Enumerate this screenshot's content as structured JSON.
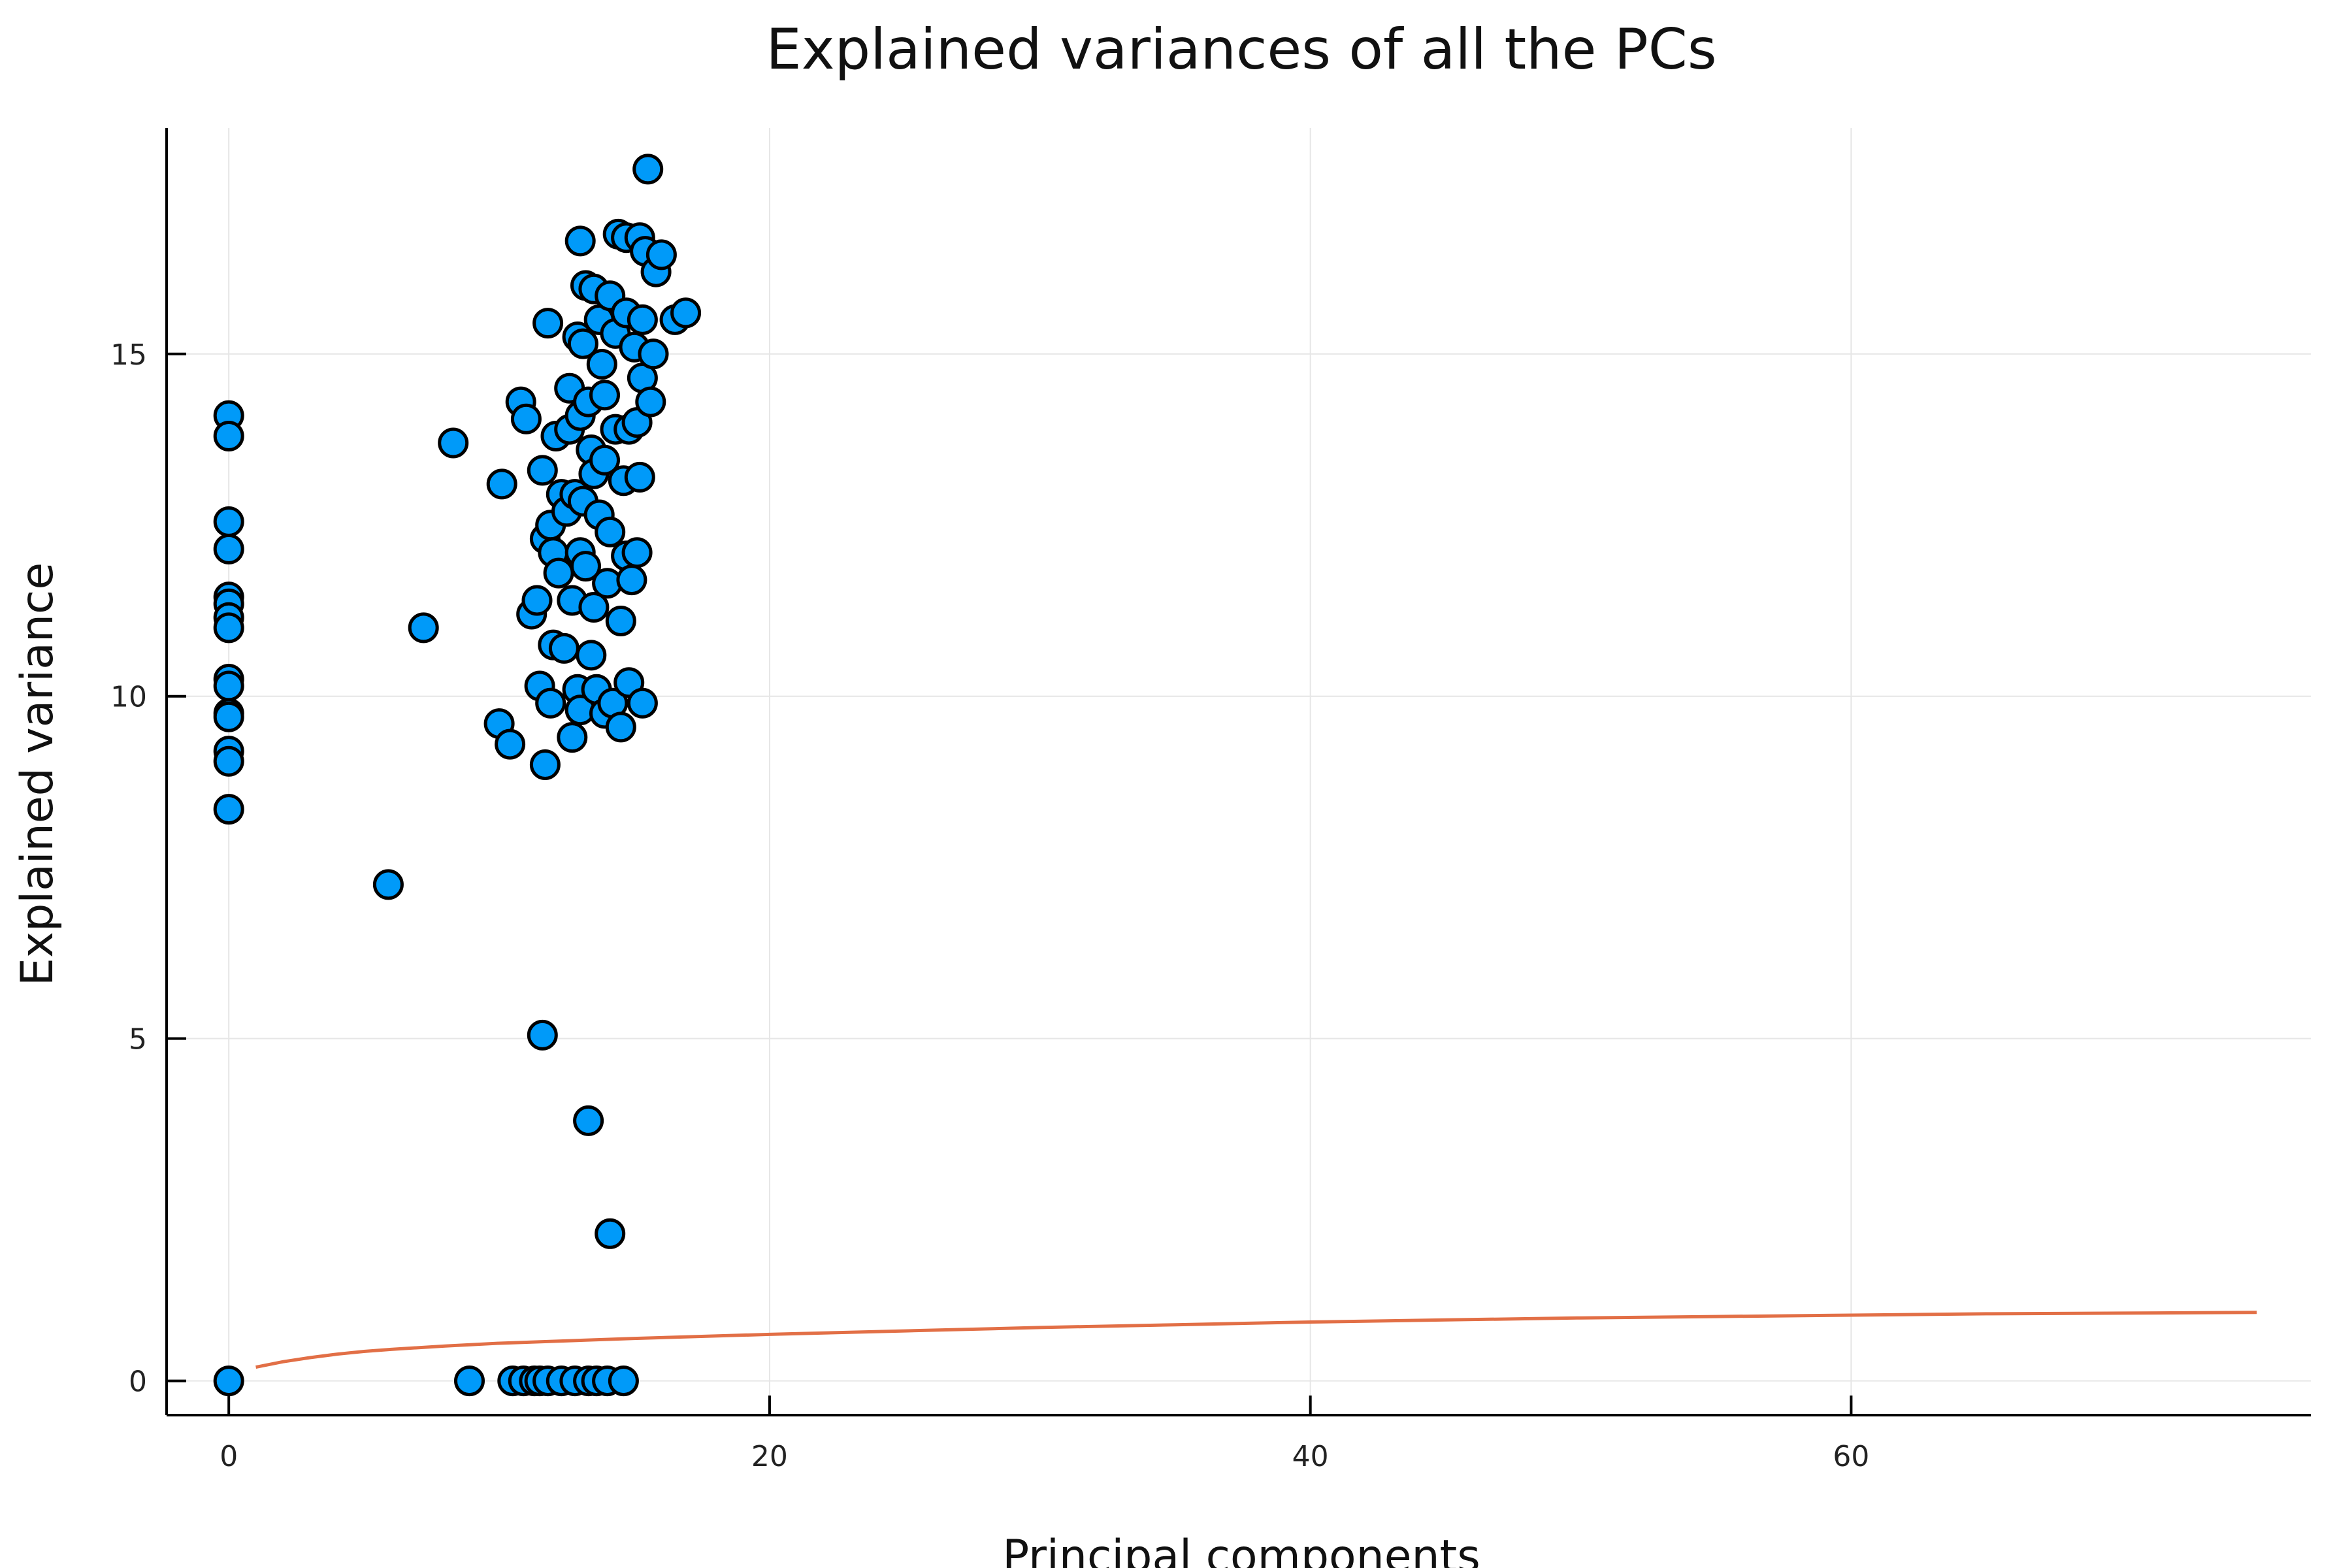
{
  "chart_data": {
    "type": "scatter",
    "title": "Explained variances of all the PCs",
    "xlabel": "Principal components",
    "ylabel": "Explained variance",
    "xlim": [
      -2.3,
      77
    ],
    "ylim": [
      -0.5,
      18.3
    ],
    "xticks": [
      0,
      20,
      40,
      60
    ],
    "yticks": [
      0,
      5,
      10,
      15
    ],
    "grid": true,
    "legend": "none",
    "series": [
      {
        "type": "scatter",
        "color": "#009AF9",
        "points": [
          [
            0,
            14.1
          ],
          [
            0,
            13.8
          ],
          [
            0,
            12.55
          ],
          [
            0,
            12.15
          ],
          [
            0,
            11.45
          ],
          [
            0,
            11.35
          ],
          [
            0,
            11.15
          ],
          [
            0,
            11.0
          ],
          [
            0,
            10.25
          ],
          [
            0,
            10.15
          ],
          [
            0,
            9.75
          ],
          [
            0,
            9.7
          ],
          [
            0,
            9.2
          ],
          [
            0,
            9.05
          ],
          [
            0,
            8.35
          ],
          [
            0,
            0
          ],
          [
            5.9,
            7.25
          ],
          [
            7.2,
            11.0
          ],
          [
            8.3,
            13.7
          ],
          [
            8.9,
            0
          ],
          [
            10.0,
            9.6
          ],
          [
            10.1,
            13.1
          ],
          [
            10.4,
            9.3
          ],
          [
            10.5,
            0
          ],
          [
            10.8,
            14.3
          ],
          [
            10.9,
            0
          ],
          [
            11.0,
            14.05
          ],
          [
            11.2,
            11.2
          ],
          [
            11.3,
            0
          ],
          [
            11.4,
            11.4
          ],
          [
            11.5,
            0
          ],
          [
            11.5,
            10.15
          ],
          [
            11.6,
            13.3
          ],
          [
            11.6,
            5.05
          ],
          [
            11.7,
            12.3
          ],
          [
            11.7,
            9.0
          ],
          [
            11.8,
            15.45
          ],
          [
            11.8,
            0
          ],
          [
            11.9,
            12.5
          ],
          [
            11.9,
            9.9
          ],
          [
            12.0,
            10.75
          ],
          [
            12.0,
            12.1
          ],
          [
            12.1,
            13.8
          ],
          [
            12.2,
            11.8
          ],
          [
            12.3,
            12.95
          ],
          [
            12.3,
            0
          ],
          [
            12.4,
            10.7
          ],
          [
            12.5,
            12.7
          ],
          [
            12.6,
            13.9
          ],
          [
            12.6,
            14.5
          ],
          [
            12.7,
            11.4
          ],
          [
            12.7,
            9.4
          ],
          [
            12.8,
            0
          ],
          [
            12.8,
            12.95
          ],
          [
            12.9,
            15.25
          ],
          [
            12.9,
            10.1
          ],
          [
            13.0,
            16.65
          ],
          [
            13.0,
            14.1
          ],
          [
            13.0,
            12.1
          ],
          [
            13.0,
            9.8
          ],
          [
            13.1,
            12.85
          ],
          [
            13.1,
            15.15
          ],
          [
            13.2,
            16.0
          ],
          [
            13.2,
            11.9
          ],
          [
            13.3,
            3.8
          ],
          [
            13.3,
            0
          ],
          [
            13.3,
            14.3
          ],
          [
            13.4,
            13.6
          ],
          [
            13.4,
            10.6
          ],
          [
            13.5,
            15.95
          ],
          [
            13.5,
            13.25
          ],
          [
            13.5,
            11.3
          ],
          [
            13.6,
            0
          ],
          [
            13.6,
            10.1
          ],
          [
            13.7,
            12.65
          ],
          [
            13.7,
            15.5
          ],
          [
            13.8,
            14.85
          ],
          [
            13.9,
            14.4
          ],
          [
            13.9,
            13.45
          ],
          [
            13.9,
            9.75
          ],
          [
            14.0,
            11.65
          ],
          [
            14.0,
            0
          ],
          [
            14.1,
            15.85
          ],
          [
            14.1,
            12.4
          ],
          [
            14.1,
            2.15
          ],
          [
            14.2,
            9.9
          ],
          [
            14.3,
            13.9
          ],
          [
            14.3,
            15.3
          ],
          [
            14.4,
            16.75
          ],
          [
            14.5,
            11.1
          ],
          [
            14.5,
            9.55
          ],
          [
            14.6,
            13.15
          ],
          [
            14.6,
            0
          ],
          [
            14.7,
            15.6
          ],
          [
            14.7,
            12.05
          ],
          [
            14.7,
            16.7
          ],
          [
            14.8,
            10.2
          ],
          [
            14.8,
            13.9
          ],
          [
            14.9,
            11.7
          ],
          [
            15.0,
            15.1
          ],
          [
            15.1,
            14.0
          ],
          [
            15.1,
            12.1
          ],
          [
            15.2,
            16.7
          ],
          [
            15.2,
            13.2
          ],
          [
            15.3,
            15.5
          ],
          [
            15.3,
            14.65
          ],
          [
            15.3,
            9.9
          ],
          [
            15.4,
            16.5
          ],
          [
            15.5,
            17.7
          ],
          [
            15.6,
            14.3
          ],
          [
            15.7,
            15.0
          ],
          [
            15.8,
            16.2
          ],
          [
            16.0,
            16.45
          ],
          [
            16.5,
            15.5
          ],
          [
            16.9,
            15.6
          ]
        ]
      },
      {
        "type": "line",
        "color": "#E26F46",
        "x": [
          1,
          2,
          3,
          4,
          5,
          6,
          8,
          10,
          15,
          20,
          25,
          30,
          35,
          40,
          45,
          50,
          55,
          60,
          65,
          70,
          75
        ],
        "y": [
          0.2,
          0.28,
          0.34,
          0.39,
          0.43,
          0.46,
          0.51,
          0.55,
          0.62,
          0.68,
          0.73,
          0.78,
          0.82,
          0.86,
          0.89,
          0.92,
          0.94,
          0.96,
          0.98,
          0.99,
          1.0
        ]
      }
    ]
  }
}
